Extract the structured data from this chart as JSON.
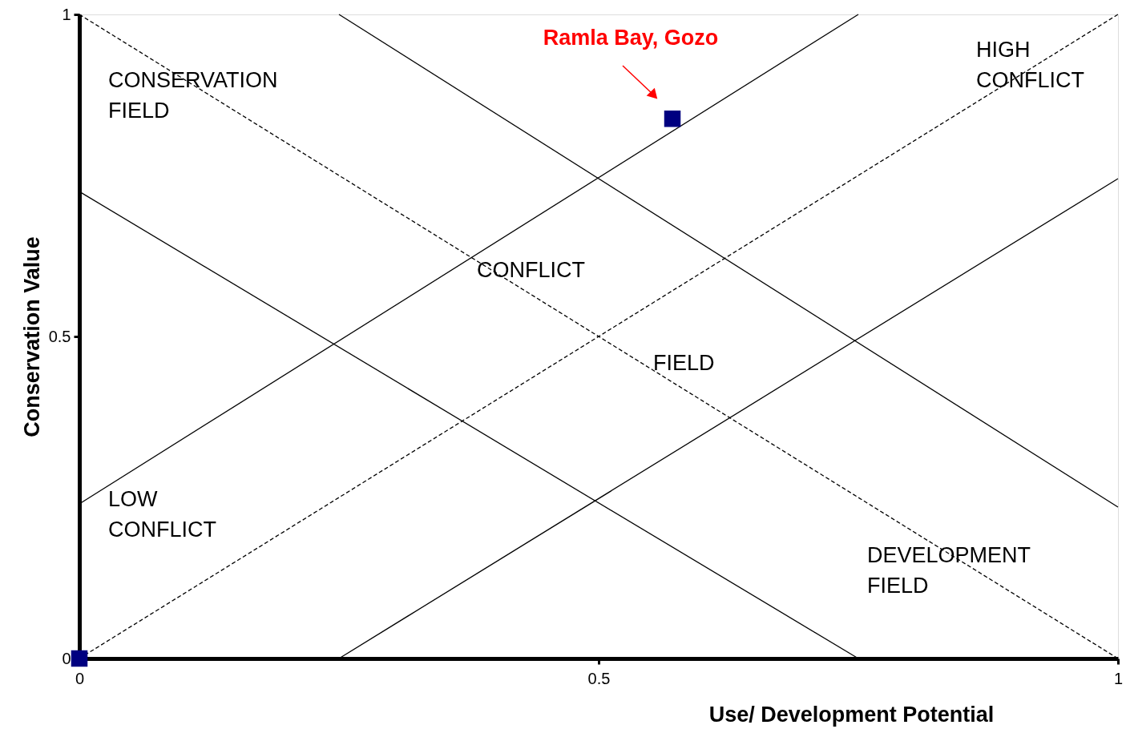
{
  "chart_data": {
    "type": "scatter",
    "xlabel": "Use/ Development Potential",
    "ylabel": "Conservation Value",
    "xlim": [
      0,
      1
    ],
    "ylim": [
      0,
      1
    ],
    "xticks": [
      0,
      0.5,
      1
    ],
    "yticks": [
      0,
      0.5,
      1
    ],
    "grid": false,
    "series": [
      {
        "type": "line",
        "color": "#000000",
        "line_style": "dashed",
        "marker": "none",
        "x": [
          0,
          1
        ],
        "values": [
          0,
          1
        ]
      },
      {
        "type": "line",
        "color": "#000000",
        "line_style": "dashed",
        "marker": "none",
        "x": [
          0,
          1
        ],
        "values": [
          1,
          0
        ]
      },
      {
        "type": "line",
        "color": "#000000",
        "line_style": "solid",
        "marker": "none",
        "x": [
          0,
          0.75
        ],
        "values": [
          0.24,
          1
        ]
      },
      {
        "type": "line",
        "color": "#000000",
        "line_style": "solid",
        "marker": "none",
        "x": [
          0.25,
          1
        ],
        "values": [
          0,
          0.745
        ]
      },
      {
        "type": "line",
        "color": "#000000",
        "line_style": "solid",
        "marker": "none",
        "x": [
          0,
          0.75
        ],
        "values": [
          0.725,
          0
        ]
      },
      {
        "type": "line",
        "color": "#000000",
        "line_style": "solid",
        "marker": "none",
        "x": [
          0.25,
          1
        ],
        "values": [
          1,
          0.235
        ]
      },
      {
        "color": "#000080",
        "marker": "square",
        "x": [
          0,
          0.571
        ],
        "values": [
          0,
          0.838
        ]
      }
    ],
    "annotations": [
      "Ramla Bay, Gozo",
      "CONSERVATION\nFIELD",
      "HIGH\nCONFLICT",
      "CONFLICT",
      "FIELD",
      "LOW\nCONFLICT",
      "DEVELOPMENT\nFIELD"
    ]
  }
}
